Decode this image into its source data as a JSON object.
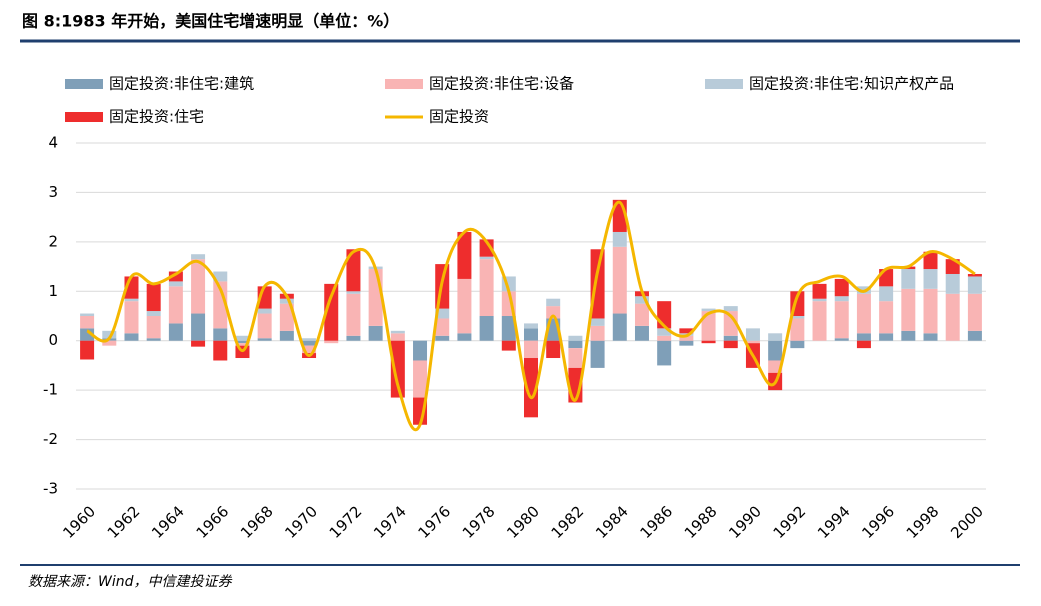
{
  "chart_data": {
    "type": "bar",
    "stacked": true,
    "title": "图 8:1983 年开始，美国住宅增速明显（单位：%）",
    "source": "数据来源：Wind，中信建投证券",
    "categories": [
      "1960",
      null,
      "1962",
      null,
      "1964",
      null,
      "1966",
      null,
      "1968",
      null,
      "1970",
      null,
      "1972",
      null,
      "1974",
      null,
      "1976",
      null,
      "1978",
      null,
      "1980",
      null,
      "1982",
      null,
      "1984",
      null,
      "1986",
      null,
      "1988",
      null,
      "1990",
      null,
      "1992",
      null,
      "1994",
      null,
      "1996",
      null,
      "1998",
      null,
      "2000"
    ],
    "ylim": [
      -3,
      4
    ],
    "yticks": [
      -3,
      -2,
      -1,
      0,
      1,
      2,
      3,
      4
    ],
    "grid": true,
    "series": [
      {
        "name": "固定投资:非住宅:建筑",
        "type": "bar",
        "color": "#7f9fb8",
        "values": [
          0.25,
          0.05,
          0.15,
          0.05,
          0.35,
          0.55,
          0.25,
          -0.05,
          0.05,
          0.2,
          -0.1,
          0.0,
          0.1,
          0.3,
          0.0,
          -0.4,
          0.1,
          0.15,
          0.5,
          0.5,
          0.25,
          0.45,
          -0.15,
          -0.55,
          0.55,
          0.3,
          -0.5,
          -0.1,
          0.0,
          0.1,
          0.0,
          -0.4,
          -0.15,
          0.0,
          0.05,
          0.15,
          0.15,
          0.2,
          0.15,
          0.0,
          0.2
        ]
      },
      {
        "name": "固定投资:非住宅:设备",
        "type": "bar",
        "color": "#f9b4b4",
        "values": [
          0.25,
          -0.1,
          0.65,
          0.45,
          0.75,
          1.1,
          0.95,
          -0.05,
          0.5,
          0.55,
          -0.15,
          -0.05,
          0.85,
          1.15,
          0.15,
          -0.75,
          0.35,
          1.1,
          1.15,
          0.5,
          -0.35,
          0.25,
          -0.4,
          0.3,
          1.35,
          0.45,
          0.1,
          0.1,
          0.6,
          0.5,
          -0.05,
          -0.25,
          0.45,
          0.8,
          0.75,
          0.8,
          0.65,
          0.85,
          0.9,
          0.95,
          0.75
        ]
      },
      {
        "name": "固定投资:非住宅:知识产权产品",
        "type": "bar",
        "color": "#b8cbd9",
        "values": [
          0.05,
          0.15,
          0.05,
          0.1,
          0.1,
          0.1,
          0.2,
          0.1,
          0.1,
          0.1,
          0.05,
          0.0,
          0.05,
          0.05,
          0.05,
          0.0,
          0.2,
          0.0,
          0.05,
          0.3,
          0.1,
          0.15,
          0.1,
          0.15,
          0.3,
          0.15,
          0.15,
          0.05,
          0.05,
          0.1,
          0.25,
          0.15,
          0.05,
          0.05,
          0.1,
          0.15,
          0.3,
          0.4,
          0.4,
          0.4,
          0.35
        ]
      },
      {
        "name": "固定投资:住宅",
        "type": "bar",
        "color": "#ee2d2d",
        "values": [
          -0.38,
          0.0,
          0.45,
          0.55,
          0.2,
          -0.12,
          -0.4,
          -0.25,
          0.45,
          0.1,
          -0.1,
          1.15,
          0.85,
          0.0,
          -1.15,
          -0.55,
          0.9,
          0.95,
          0.35,
          -0.2,
          -1.2,
          -0.35,
          -0.7,
          1.4,
          0.65,
          0.1,
          0.55,
          0.1,
          -0.05,
          -0.15,
          -0.5,
          -0.35,
          0.5,
          0.3,
          0.35,
          -0.15,
          0.35,
          0.05,
          0.35,
          0.3,
          0.05
        ]
      },
      {
        "name": "固定投资",
        "type": "line",
        "color": "#f5b700",
        "values": [
          0.2,
          0.05,
          1.3,
          1.15,
          1.35,
          1.6,
          1.05,
          -0.2,
          1.1,
          0.9,
          -0.3,
          0.9,
          1.8,
          1.45,
          -0.9,
          -1.7,
          1.2,
          2.2,
          2.0,
          1.0,
          -1.15,
          0.5,
          -1.2,
          1.4,
          2.8,
          1.0,
          0.3,
          0.1,
          0.55,
          0.5,
          -0.3,
          -0.85,
          0.9,
          1.2,
          1.3,
          1.0,
          1.45,
          1.5,
          1.8,
          1.65,
          1.35
        ]
      }
    ]
  }
}
